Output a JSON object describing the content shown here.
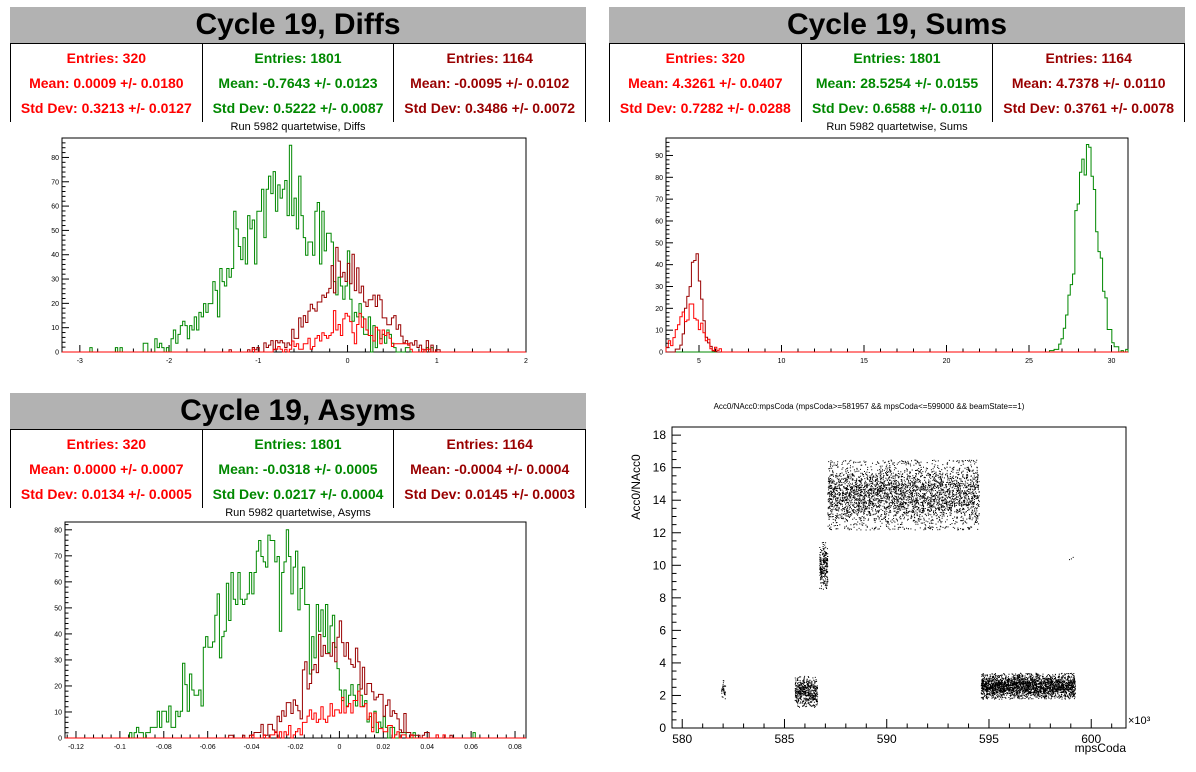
{
  "panels": [
    {
      "title": "Cycle 19, Diffs",
      "subtitle": "Run 5982 quartetwise, Diffs",
      "stats": [
        {
          "entries": "Entries: 320",
          "mean": "Mean: 0.0009 +/- 0.0180",
          "std": "Std Dev: 0.3213 +/- 0.0127",
          "color": "#ff0000"
        },
        {
          "entries": "Entries: 1801",
          "mean": "Mean: -0.7643 +/- 0.0123",
          "std": "Std Dev: 0.5222 +/- 0.0087",
          "color": "#008800"
        },
        {
          "entries": "Entries: 1164",
          "mean": "Mean: -0.0095 +/- 0.0102",
          "std": "Std Dev: 0.3486 +/- 0.0072",
          "color": "#990000"
        }
      ]
    },
    {
      "title": "Cycle 19, Sums",
      "subtitle": "Run 5982 quartetwise, Sums",
      "stats": [
        {
          "entries": "Entries: 320",
          "mean": "Mean: 4.3261 +/- 0.0407",
          "std": "Std Dev: 0.7282 +/- 0.0288",
          "color": "#ff0000"
        },
        {
          "entries": "Entries: 1801",
          "mean": "Mean: 28.5254 +/- 0.0155",
          "std": "Std Dev: 0.6588 +/- 0.0110",
          "color": "#008800"
        },
        {
          "entries": "Entries: 1164",
          "mean": "Mean: 4.7378 +/- 0.0110",
          "std": "Std Dev: 0.3761 +/- 0.0078",
          "color": "#990000"
        }
      ]
    },
    {
      "title": "Cycle 19, Asyms",
      "subtitle": "Run 5982 quartetwise, Asyms",
      "stats": [
        {
          "entries": "Entries: 320",
          "mean": "Mean: 0.0000 +/- 0.0007",
          "std": "Std Dev: 0.0134 +/- 0.0005",
          "color": "#ff0000"
        },
        {
          "entries": "Entries: 1801",
          "mean": "Mean: -0.0318 +/- 0.0005",
          "std": "Std Dev: 0.0217 +/- 0.0004",
          "color": "#008800"
        },
        {
          "entries": "Entries: 1164",
          "mean": "Mean: -0.0004 +/- 0.0004",
          "std": "Std Dev: 0.0145 +/- 0.0003",
          "color": "#990000"
        }
      ]
    }
  ],
  "chart_data": [
    {
      "type": "histogram",
      "title": "Run 5982 quartetwise, Diffs",
      "xlim": [
        -3.2,
        2
      ],
      "ylim": [
        0,
        88
      ],
      "xticks": [
        -3,
        -2,
        -1,
        0,
        1,
        2
      ],
      "yticks": [
        0,
        10,
        20,
        30,
        40,
        50,
        60,
        70,
        80
      ],
      "series": [
        {
          "color": "#008800",
          "mean": -0.7643,
          "sigma": 0.5222,
          "entries": 1801,
          "peak": 85
        },
        {
          "color": "#990000",
          "mean": -0.0095,
          "sigma": 0.3486,
          "entries": 1164,
          "peak": 43
        },
        {
          "color": "#ff0000",
          "mean": 0.0009,
          "sigma": 0.3213,
          "entries": 320,
          "peak": 17
        }
      ]
    },
    {
      "type": "histogram",
      "title": "Run 5982 quartetwise, Sums",
      "xlim": [
        3,
        31
      ],
      "ylim": [
        0,
        98
      ],
      "xticks": [
        5,
        10,
        15,
        20,
        25,
        30
      ],
      "yticks": [
        0,
        10,
        20,
        30,
        40,
        50,
        60,
        70,
        80,
        90
      ],
      "series": [
        {
          "color": "#008800",
          "mean": 28.5254,
          "sigma": 0.6588,
          "entries": 1801,
          "peak": 95
        },
        {
          "color": "#990000",
          "mean": 4.7378,
          "sigma": 0.3761,
          "entries": 1164,
          "peak": 45
        },
        {
          "color": "#ff0000",
          "mean": 4.3261,
          "sigma": 0.7282,
          "entries": 320,
          "peak": 22
        }
      ]
    },
    {
      "type": "histogram",
      "title": "Run 5982 quartetwise, Asyms",
      "xlim": [
        -0.125,
        0.085
      ],
      "ylim": [
        0,
        83
      ],
      "xticks": [
        -0.12,
        -0.1,
        -0.08,
        -0.06,
        -0.04,
        -0.02,
        0,
        0.02,
        0.04,
        0.06,
        0.08
      ],
      "yticks": [
        0,
        10,
        20,
        30,
        40,
        50,
        60,
        70,
        80
      ],
      "series": [
        {
          "color": "#008800",
          "mean": -0.0318,
          "sigma": 0.0217,
          "entries": 1801,
          "peak": 80
        },
        {
          "color": "#990000",
          "mean": -0.0004,
          "sigma": 0.0145,
          "entries": 1164,
          "peak": 45
        },
        {
          "color": "#ff0000",
          "mean": 0.0,
          "sigma": 0.0134,
          "entries": 320,
          "peak": 18
        }
      ]
    },
    {
      "type": "scatter",
      "title": "Acc0/NAcc0:mpsCoda (mpsCoda>=581957 && mpsCoda<=599000 && beamState==1)",
      "xlabel": "mpsCoda",
      "ylabel": "Acc0/NAcc0",
      "x_multiplier": "×10³",
      "xlim": [
        579.5,
        601.7
      ],
      "ylim": [
        0,
        18.5
      ],
      "xticks": [
        580,
        585,
        590,
        595,
        600
      ],
      "yticks": [
        0,
        2,
        4,
        6,
        8,
        10,
        12,
        14,
        16,
        18
      ],
      "clusters": [
        {
          "x": [
            581.9,
            582.1
          ],
          "y": [
            1.8,
            3.0
          ],
          "n": 40
        },
        {
          "x": [
            585.5,
            586.6
          ],
          "y": [
            1.3,
            3.2
          ],
          "n": 500
        },
        {
          "x": [
            586.7,
            587.1
          ],
          "y": [
            8.5,
            11.5
          ],
          "n": 250
        },
        {
          "x": [
            587.1,
            594.5
          ],
          "y": [
            12.2,
            16.5
          ],
          "n": 4500
        },
        {
          "x": [
            594.6,
            599.2
          ],
          "y": [
            1.8,
            3.4
          ],
          "n": 2600
        },
        {
          "x": [
            598.9,
            599.1
          ],
          "y": [
            10.3,
            10.6
          ],
          "n": 3
        }
      ]
    }
  ]
}
